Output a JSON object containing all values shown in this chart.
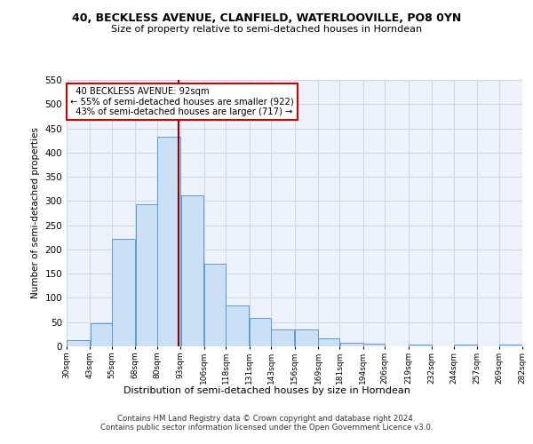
{
  "title_line1": "40, BECKLESS AVENUE, CLANFIELD, WATERLOOVILLE, PO8 0YN",
  "title_line2": "Size of property relative to semi-detached houses in Horndean",
  "xlabel": "Distribution of semi-detached houses by size in Horndean",
  "ylabel": "Number of semi-detached properties",
  "bin_labels": [
    "30sqm",
    "43sqm",
    "55sqm",
    "68sqm",
    "80sqm",
    "93sqm",
    "106sqm",
    "118sqm",
    "131sqm",
    "143sqm",
    "156sqm",
    "169sqm",
    "181sqm",
    "194sqm",
    "206sqm",
    "219sqm",
    "232sqm",
    "244sqm",
    "257sqm",
    "269sqm",
    "282sqm"
  ],
  "bar_heights": [
    12,
    48,
    222,
    293,
    432,
    311,
    170,
    85,
    58,
    35,
    35,
    16,
    7,
    5,
    0,
    4,
    0,
    3,
    0,
    4
  ],
  "bar_left_edges": [
    30,
    43,
    55,
    68,
    80,
    93,
    106,
    118,
    131,
    143,
    156,
    169,
    181,
    194,
    206,
    219,
    232,
    244,
    257,
    269
  ],
  "bar_widths": [
    13,
    12,
    13,
    12,
    13,
    13,
    12,
    13,
    12,
    13,
    13,
    12,
    13,
    12,
    13,
    13,
    12,
    13,
    12,
    13
  ],
  "property_size": 92,
  "property_label": "40 BECKLESS AVENUE: 92sqm",
  "smaller_pct": 55,
  "smaller_count": 922,
  "larger_pct": 43,
  "larger_count": 717,
  "bar_facecolor": "#cce0f5",
  "bar_edgecolor": "#5b9bd5",
  "vline_color": "#8b0000",
  "annotation_box_edgecolor": "#cc0000",
  "grid_color": "#d0d8e8",
  "bg_color": "#eef2fa",
  "footer_line1": "Contains HM Land Registry data © Crown copyright and database right 2024.",
  "footer_line2": "Contains public sector information licensed under the Open Government Licence v3.0.",
  "ylim": [
    0,
    550
  ],
  "yticks": [
    0,
    50,
    100,
    150,
    200,
    250,
    300,
    350,
    400,
    450,
    500,
    550
  ]
}
